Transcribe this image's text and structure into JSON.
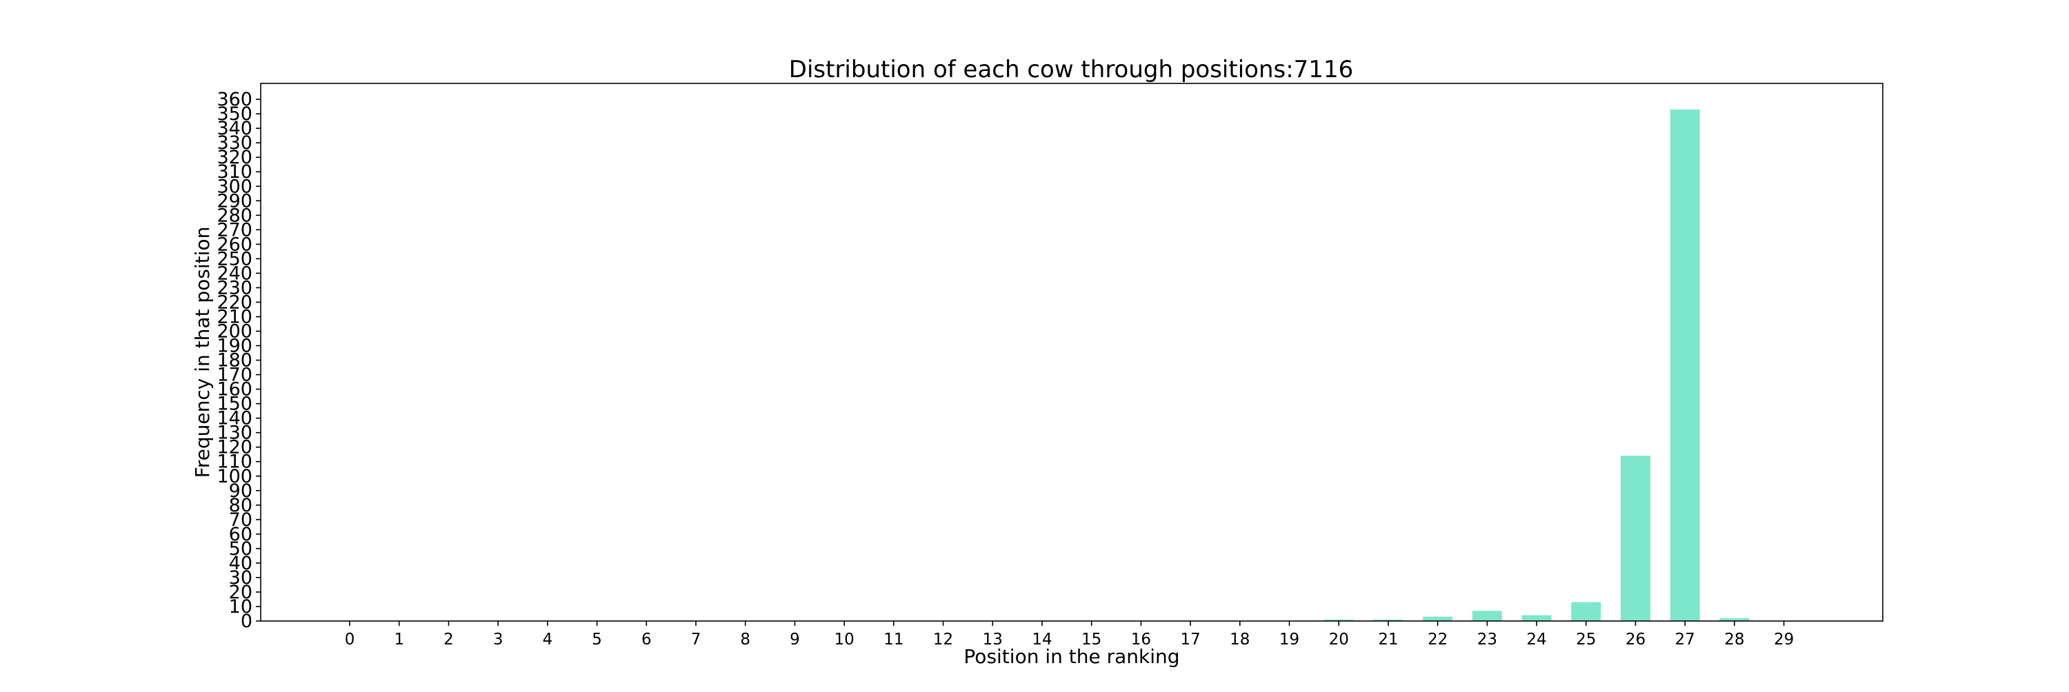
{
  "chart_data": {
    "type": "bar",
    "title": "Distribution of each cow through positions:7116",
    "xlabel": "Position in the ranking",
    "ylabel": "Frequency in that position",
    "categories": [
      "0",
      "1",
      "2",
      "3",
      "4",
      "5",
      "6",
      "7",
      "8",
      "9",
      "10",
      "11",
      "12",
      "13",
      "14",
      "15",
      "16",
      "17",
      "18",
      "19",
      "20",
      "21",
      "22",
      "23",
      "24",
      "25",
      "26",
      "27",
      "28",
      "29"
    ],
    "values": [
      0,
      0,
      0,
      0,
      0,
      0,
      0,
      0,
      0,
      0,
      0,
      0,
      0,
      0,
      0,
      0,
      0,
      0,
      0,
      0,
      1,
      1,
      3,
      7,
      4,
      13,
      114,
      353,
      2,
      0
    ],
    "ylim": [
      0,
      371
    ],
    "xlim": [
      -1.8,
      31
    ],
    "yticks": [
      0,
      10,
      20,
      30,
      40,
      50,
      60,
      70,
      80,
      90,
      100,
      110,
      120,
      130,
      140,
      150,
      160,
      170,
      180,
      190,
      200,
      210,
      220,
      230,
      240,
      250,
      260,
      270,
      280,
      290,
      300,
      310,
      320,
      330,
      340,
      350,
      360
    ],
    "bar_color": "#7ee6cb",
    "grid": false,
    "legend": "none"
  }
}
